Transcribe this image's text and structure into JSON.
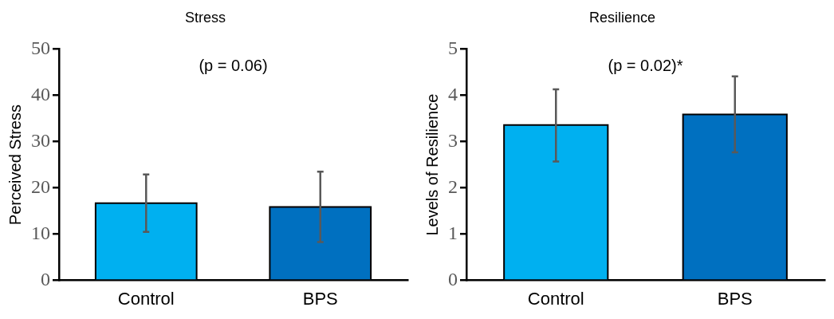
{
  "chart_data": [
    {
      "type": "bar",
      "title": "Stress",
      "ylabel": "Perceived Stress",
      "categories": [
        "Control",
        "BPS"
      ],
      "values": [
        16.7,
        15.9
      ],
      "colors": [
        "#00b0f0",
        "#0070c0"
      ],
      "errors": [
        [
          10.5,
          22.9
        ],
        [
          8.3,
          23.5
        ]
      ],
      "ylim": [
        0,
        50
      ],
      "yticks": [
        0,
        10,
        20,
        30,
        40,
        50
      ],
      "grid": false,
      "legend": false,
      "annotations": [
        "(p = 0.06)"
      ]
    },
    {
      "type": "bar",
      "title": "Resilience",
      "ylabel": "Levels of Resilience",
      "categories": [
        "Control",
        "BPS"
      ],
      "values": [
        3.36,
        3.59
      ],
      "colors": [
        "#00b0f0",
        "#0070c0"
      ],
      "errors": [
        [
          2.57,
          4.13
        ],
        [
          2.77,
          4.41
        ]
      ],
      "ylim": [
        0,
        5
      ],
      "yticks": [
        0,
        1,
        2,
        3,
        4,
        5
      ],
      "grid": false,
      "legend": false,
      "annotations": [
        "(p = 0.02)*"
      ]
    }
  ]
}
